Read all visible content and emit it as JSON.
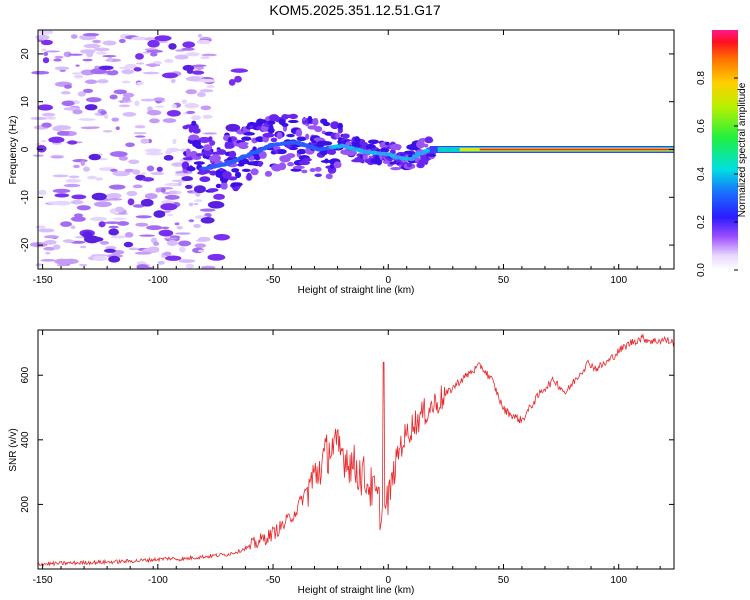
{
  "chart_data": [
    {
      "type": "heatmap",
      "title": "KOM5.2025.351.12.51.G17",
      "xlabel": "Height of straight line (km)",
      "ylabel": "Frequency (Hz)",
      "xlim": [
        -152,
        124
      ],
      "ylim": [
        -25,
        25
      ],
      "xticks": [
        -150,
        -100,
        -50,
        0,
        50,
        100
      ],
      "yticks": [
        -20,
        -10,
        0,
        10,
        20
      ],
      "colorbar": {
        "label": "Normalized spectral amplitude",
        "range": [
          0,
          1
        ],
        "ticks": [
          0.0,
          0.2,
          0.4,
          0.6,
          0.8
        ],
        "tick_labels": [
          "0.0",
          "0.2",
          "0.4",
          "0.6",
          "0.8"
        ]
      },
      "ridge": [
        {
          "x": -80,
          "f": -4
        },
        {
          "x": -70,
          "f": -3
        },
        {
          "x": -60,
          "f": -1
        },
        {
          "x": -50,
          "f": 1
        },
        {
          "x": -40,
          "f": 1.5
        },
        {
          "x": -30,
          "f": 0
        },
        {
          "x": -20,
          "f": 0.8
        },
        {
          "x": -10,
          "f": -0.5
        },
        {
          "x": 0,
          "f": -1
        },
        {
          "x": 5,
          "f": -1.8
        },
        {
          "x": 10,
          "f": -2
        },
        {
          "x": 15,
          "f": -0.5
        },
        {
          "x": 20,
          "f": 0
        },
        {
          "x": 30,
          "f": 0
        },
        {
          "x": 124,
          "f": 0
        }
      ]
    },
    {
      "type": "line",
      "xlabel": "Height of straight line (km)",
      "ylabel": "SNR (v/v)",
      "xlim": [
        -152,
        124
      ],
      "ylim": [
        0,
        740
      ],
      "xticks": [
        -150,
        -100,
        -50,
        0,
        50,
        100
      ],
      "yticks": [
        200,
        400,
        600
      ],
      "series": [
        {
          "name": "SNR",
          "color": "#e8282b",
          "x": [
            -152,
            -140,
            -130,
            -120,
            -110,
            -100,
            -95,
            -90,
            -85,
            -80,
            -75,
            -70,
            -65,
            -60,
            -55,
            -50,
            -45,
            -40,
            -35,
            -30,
            -25,
            -20,
            -15,
            -10,
            -5,
            -2,
            0,
            5,
            10,
            15,
            20,
            25,
            30,
            35,
            40,
            45,
            50,
            55,
            58,
            62,
            67,
            72,
            77,
            82,
            87,
            90,
            95,
            100,
            105,
            110,
            115,
            120,
            124
          ],
          "y": [
            15,
            18,
            20,
            22,
            25,
            30,
            33,
            30,
            35,
            38,
            42,
            45,
            55,
            70,
            90,
            110,
            140,
            180,
            250,
            310,
            380,
            360,
            320,
            280,
            220,
            150,
            220,
            380,
            440,
            480,
            510,
            540,
            575,
            605,
            630,
            585,
            495,
            470,
            460,
            505,
            555,
            585,
            545,
            595,
            640,
            620,
            640,
            675,
            700,
            715,
            705,
            710,
            700
          ]
        }
      ],
      "spike": {
        "x": -2,
        "y": 640
      }
    }
  ]
}
